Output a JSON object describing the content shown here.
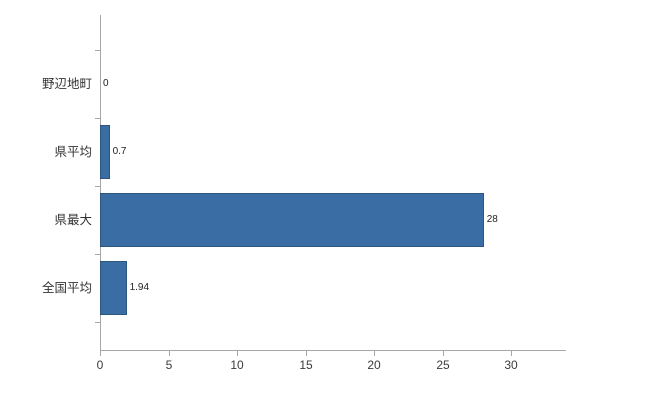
{
  "chart_data": {
    "type": "bar",
    "orientation": "horizontal",
    "title": "",
    "categories": [
      "野辺地町",
      "県平均",
      "県最大",
      "全国平均"
    ],
    "values": [
      0,
      0.7,
      28,
      1.94
    ],
    "value_labels": [
      "0",
      "0.7",
      "28",
      "1.94"
    ],
    "x_ticks": [
      0,
      5,
      10,
      15,
      20,
      25,
      30
    ],
    "x_tick_labels": [
      "0",
      "5",
      "10",
      "15",
      "20",
      "25",
      "30"
    ],
    "xlim": [
      0,
      34
    ],
    "grid": false,
    "legend": null,
    "colors": {
      "bar_fill": "#3a6da4",
      "bar_border": "#2d567f",
      "axis": "#a6a6a6",
      "category_text": "#333333",
      "value_text": "#222222",
      "tick_text": "#3a3a3a"
    }
  }
}
